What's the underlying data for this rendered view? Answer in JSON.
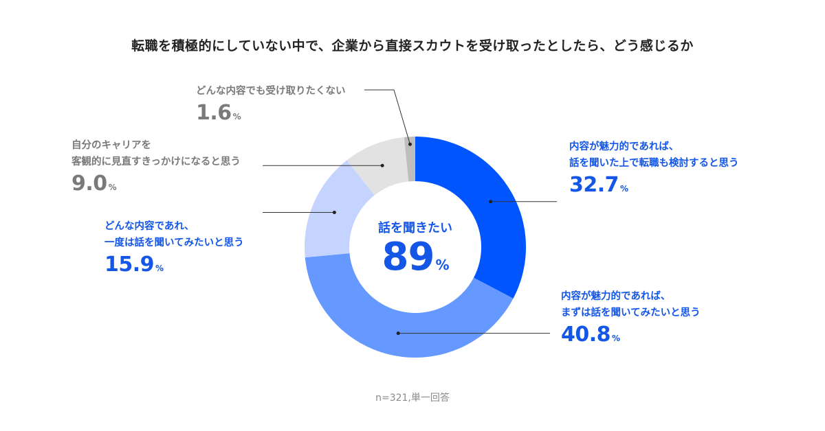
{
  "title": "転職を積極的にしていない中で、企業から直接スカウトを受け取ったとしたら、どう感じるか",
  "note": "n=321,単一回答",
  "center": {
    "caption": "話を聞きたい",
    "value": "89",
    "unit": "%"
  },
  "colors": {
    "s1": "#0055ff",
    "s2": "#6699ff",
    "s3": "#c5d4ff",
    "s4": "#e2e2e2",
    "s5": "#bdbdbd",
    "accent_text": "#1456e6",
    "gray_text": "#7a7a7a"
  },
  "chart_data": {
    "type": "pie",
    "donut": true,
    "series": [
      {
        "name": "内容が魅力的であれば、話を聞いた上で転職も検討すると思う",
        "lines": [
          "内容が魅力的であれば、",
          "話を聞いた上で転職も検討すると思う"
        ],
        "value": 32.7,
        "display": "32.7"
      },
      {
        "name": "内容が魅力的であれば、まずは話を聞いてみたいと思う",
        "lines": [
          "内容が魅力的であれば、",
          "まずは話を聞いてみたいと思う"
        ],
        "value": 40.8,
        "display": "40.8"
      },
      {
        "name": "どんな内容であれ、一度は話を聞いてみたいと思う",
        "lines": [
          "どんな内容であれ、",
          "一度は話を聞いてみたいと思う"
        ],
        "value": 15.9,
        "display": "15.9"
      },
      {
        "name": "自分のキャリアを客観的に見直すきっかけになると思う",
        "lines": [
          "自分のキャリアを",
          "客観的に見直すきっかけになると思う"
        ],
        "value": 9.0,
        "display": "9.0"
      },
      {
        "name": "どんな内容でも受け取りたくない",
        "lines": [
          "どんな内容でも受け取りたくない"
        ],
        "value": 1.6,
        "display": "1.6"
      }
    ],
    "unit": "%"
  }
}
